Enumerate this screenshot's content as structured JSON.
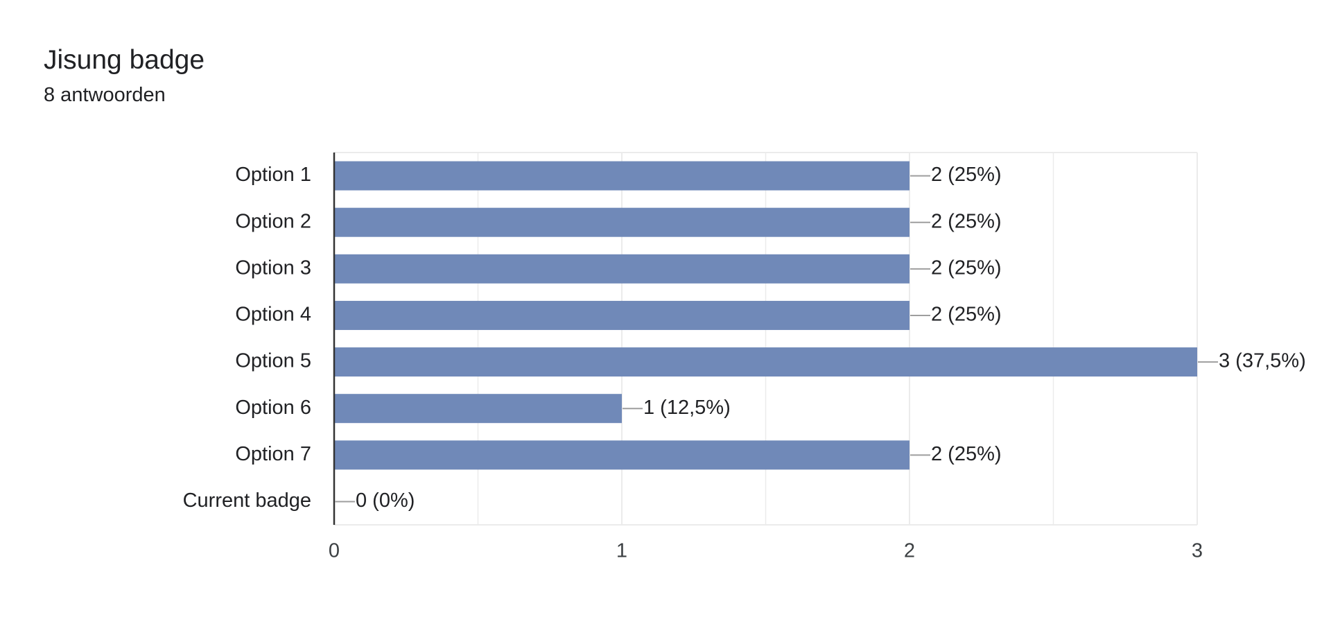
{
  "header": {
    "title": "Jisung badge",
    "subtitle": "8 antwoorden"
  },
  "colors": {
    "bar": "#7089b8",
    "grid": "#ebebeb",
    "axis": "#333333",
    "leader": "#9e9e9e",
    "text": "#202124"
  },
  "chart_data": {
    "type": "bar",
    "orientation": "horizontal",
    "title": "Jisung badge",
    "subtitle": "8 antwoorden",
    "categories": [
      "Option 1",
      "Option 2",
      "Option 3",
      "Option 4",
      "Option 5",
      "Option 6",
      "Option 7",
      "Current badge"
    ],
    "values": [
      2,
      2,
      2,
      2,
      3,
      1,
      2,
      0
    ],
    "value_labels": [
      "2 (25%)",
      "2 (25%)",
      "2 (25%)",
      "2 (25%)",
      "3 (37,5%)",
      "1 (12,5%)",
      "2 (25%)",
      "0 (0%)"
    ],
    "xlim": [
      0,
      3
    ],
    "x_ticks": [
      "0",
      "1",
      "2",
      "3"
    ],
    "xlabel": "",
    "ylabel": "",
    "grid": true,
    "legend": "none"
  }
}
